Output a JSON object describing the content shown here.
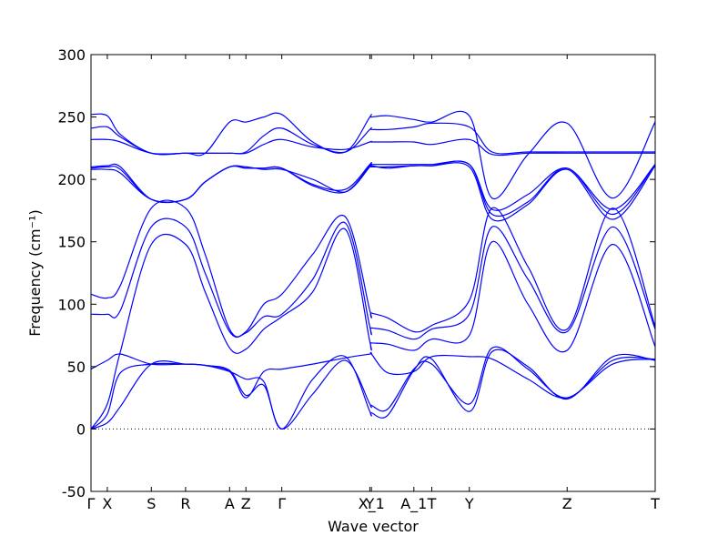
{
  "chart_data": {
    "type": "line",
    "title": "",
    "xlabel": "Wave vector",
    "ylabel": "Frequency (cm⁻¹)",
    "ylim": [
      -50,
      300
    ],
    "yticks": [
      -50,
      0,
      50,
      100,
      150,
      200,
      250,
      300
    ],
    "grid": false,
    "legend": "none",
    "line_color": "#0000ff",
    "zero_line": {
      "y": 0,
      "style": "dotted",
      "color": "#000000"
    },
    "x_tick_labels": [
      {
        "label": "Γ",
        "x": 0.0
      },
      {
        "label": "X",
        "x": 0.5
      },
      {
        "label": "S",
        "x": 1.85
      },
      {
        "label": "R",
        "x": 2.9
      },
      {
        "label": "A",
        "x": 4.25
      },
      {
        "label": "Z",
        "x": 4.75
      },
      {
        "label": "Γ",
        "x": 5.85
      },
      {
        "label": "Y",
        "x": 8.55
      },
      {
        "label": "X_1",
        "x": 8.6
      },
      {
        "label": "A_1",
        "x": 9.9
      },
      {
        "label": "T",
        "x": 10.45
      },
      {
        "label": "Y",
        "x": 11.6
      },
      {
        "label": "Z",
        "x": 14.6
      },
      {
        "label": "T",
        "x": 17.3
      }
    ],
    "xlim": [
      0,
      17.3
    ],
    "series": [
      {
        "x": [
          0,
          0.5,
          0.9,
          1.85,
          2.9,
          3.5,
          4.25,
          4.75,
          5.3,
          5.85,
          6.8,
          7.8,
          8.55,
          8.6,
          9.1,
          9.9,
          10.45,
          11.6,
          12.3,
          13.4,
          14.6,
          16.0,
          17.3
        ],
        "y": [
          0,
          5,
          18,
          52,
          52,
          51,
          47,
          27,
          35,
          0,
          28,
          55,
          20,
          19,
          16,
          48,
          52,
          20,
          65,
          48,
          25,
          55,
          56
        ]
      },
      {
        "x": [
          0,
          0.5,
          0.9,
          1.85,
          2.9,
          3.5,
          4.25,
          4.75,
          5.3,
          5.85,
          6.8,
          7.8,
          8.55,
          8.6,
          9.1,
          9.9,
          10.45,
          11.6,
          12.3,
          13.4,
          14.6,
          16.0,
          17.3
        ],
        "y": [
          0,
          12,
          45,
          52,
          52,
          51,
          46,
          40,
          38,
          0,
          40,
          58,
          14,
          13,
          11,
          47,
          56,
          14,
          62,
          50,
          24,
          58,
          55
        ]
      },
      {
        "x": [
          0,
          0.5,
          0.9,
          1.85,
          2.9,
          3.5,
          4.25,
          4.75,
          5.3,
          5.85,
          6.8,
          7.8,
          8.55,
          8.6,
          9.1,
          9.9,
          10.45,
          11.6,
          12.3,
          13.4,
          14.6,
          16.0,
          17.3
        ],
        "y": [
          48,
          55,
          60,
          52,
          52,
          51,
          46,
          25,
          46,
          48,
          52,
          57,
          60,
          60,
          45,
          46,
          58,
          58,
          56,
          40,
          25,
          52,
          56
        ]
      },
      {
        "x": [
          0,
          0.5,
          0.9,
          1.85,
          2.9,
          3.5,
          4.25,
          4.75,
          5.3,
          5.85,
          6.8,
          7.8,
          8.55,
          8.6,
          9.1,
          9.9,
          10.45,
          11.6,
          12.3,
          13.4,
          14.6,
          16.0,
          17.3
        ],
        "y": [
          0,
          20,
          62,
          148,
          148,
          110,
          65,
          64,
          80,
          90,
          110,
          160,
          70,
          69,
          68,
          63,
          72,
          75,
          150,
          100,
          63,
          148,
          66
        ]
      },
      {
        "x": [
          0,
          0.5,
          0.9,
          1.85,
          2.9,
          3.5,
          4.25,
          4.75,
          5.3,
          5.85,
          6.8,
          7.8,
          8.55,
          8.6,
          9.1,
          9.9,
          10.45,
          11.6,
          12.3,
          13.4,
          14.6,
          16.0,
          17.3
        ],
        "y": [
          92,
          92,
          95,
          162,
          162,
          125,
          78,
          77,
          90,
          92,
          120,
          165,
          82,
          81,
          79,
          72,
          80,
          92,
          162,
          120,
          78,
          162,
          80
        ]
      },
      {
        "x": [
          0,
          0.5,
          0.9,
          1.85,
          2.9,
          3.5,
          4.25,
          4.75,
          5.3,
          5.85,
          6.8,
          7.8,
          8.55,
          8.6,
          9.1,
          9.9,
          10.45,
          11.6,
          12.3,
          13.4,
          14.6,
          16.0,
          17.3
        ],
        "y": [
          108,
          105,
          115,
          177,
          177,
          140,
          80,
          78,
          100,
          108,
          140,
          170,
          95,
          93,
          89,
          78,
          83,
          103,
          177,
          130,
          80,
          177,
          82
        ]
      },
      {
        "x": [
          0,
          0.5,
          0.9,
          1.85,
          2.9,
          3.5,
          4.25,
          4.75,
          5.3,
          5.85,
          6.8,
          7.8,
          8.55,
          8.6,
          9.1,
          9.9,
          10.45,
          11.6,
          12.3,
          13.4,
          14.6,
          16.0,
          17.3
        ],
        "y": [
          208,
          208,
          205,
          184,
          184,
          198,
          210,
          210,
          208,
          208,
          200,
          190,
          210,
          210,
          210,
          211,
          211,
          210,
          168,
          180,
          208,
          168,
          211
        ]
      },
      {
        "x": [
          0,
          0.5,
          0.9,
          1.85,
          2.9,
          3.5,
          4.25,
          4.75,
          5.3,
          5.85,
          6.8,
          7.8,
          8.55,
          8.6,
          9.1,
          9.9,
          10.45,
          11.6,
          12.3,
          13.4,
          14.6,
          16.0,
          17.3
        ],
        "y": [
          209,
          210,
          208,
          184,
          184,
          198,
          210,
          209,
          209,
          209,
          195,
          190,
          211,
          211,
          209,
          211,
          211,
          212,
          172,
          182,
          209,
          172,
          212
        ]
      },
      {
        "x": [
          0,
          0.5,
          0.9,
          1.85,
          2.9,
          3.5,
          4.25,
          4.75,
          5.3,
          5.85,
          6.8,
          7.8,
          8.55,
          8.6,
          9.1,
          9.9,
          10.45,
          11.6,
          12.3,
          13.4,
          14.6,
          16.0,
          17.3
        ],
        "y": [
          210,
          211,
          210,
          184,
          184,
          198,
          210,
          209,
          209,
          209,
          196,
          192,
          212,
          212,
          212,
          212,
          212,
          212,
          176,
          188,
          209,
          176,
          212
        ]
      },
      {
        "x": [
          0,
          0.5,
          0.9,
          1.85,
          2.9,
          3.5,
          4.25,
          4.75,
          5.3,
          5.85,
          6.8,
          7.8,
          8.55,
          8.6,
          9.1,
          9.9,
          10.45,
          11.6,
          12.3,
          13.4,
          14.6,
          16.0,
          17.3
        ],
        "y": [
          232,
          232,
          230,
          221,
          221,
          221,
          221,
          221,
          228,
          232,
          226,
          224,
          230,
          230,
          230,
          230,
          228,
          232,
          220,
          221,
          221,
          221,
          221
        ]
      },
      {
        "x": [
          0,
          0.5,
          0.9,
          1.85,
          2.9,
          3.5,
          4.25,
          4.75,
          5.3,
          5.85,
          6.8,
          7.8,
          8.55,
          8.6,
          9.1,
          9.9,
          10.45,
          11.6,
          12.3,
          13.4,
          14.6,
          16.0,
          17.3
        ],
        "y": [
          241,
          242,
          234,
          221,
          221,
          221,
          221,
          222,
          235,
          241,
          228,
          222,
          240,
          240,
          240,
          242,
          245,
          242,
          222,
          222,
          222,
          222,
          222
        ]
      },
      {
        "x": [
          0,
          0.5,
          0.9,
          1.85,
          2.9,
          3.5,
          4.25,
          4.75,
          5.3,
          5.85,
          6.8,
          7.8,
          8.55,
          8.6,
          9.1,
          9.9,
          10.45,
          11.6,
          12.3,
          13.4,
          14.6,
          16.0,
          17.3
        ],
        "y": [
          252,
          251,
          236,
          221,
          221,
          221,
          246,
          246,
          250,
          252,
          230,
          222,
          250,
          250,
          251,
          248,
          246,
          251,
          185,
          220,
          245,
          185,
          246
        ]
      }
    ]
  }
}
